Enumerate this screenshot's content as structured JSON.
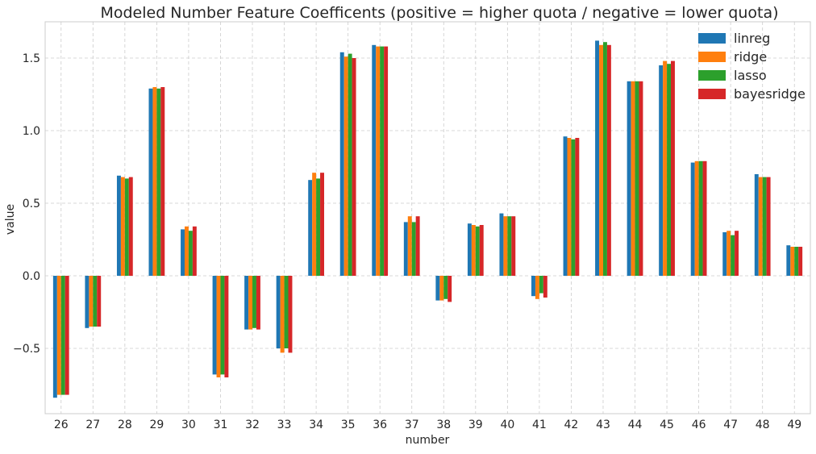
{
  "chart_data": {
    "type": "bar",
    "title": "Modeled Number Feature Coefficents (positive = higher quota / negative = lower quota)",
    "xlabel": "number",
    "ylabel": "value",
    "ylim": [
      -0.95,
      1.75
    ],
    "yticks": [
      -0.5,
      0.0,
      0.5,
      1.0,
      1.5
    ],
    "ytick_labels": [
      "−0.5",
      "0.0",
      "0.5",
      "1.0",
      "1.5"
    ],
    "grid": true,
    "legend_position": "top-right",
    "categories": [
      "26",
      "27",
      "28",
      "29",
      "30",
      "31",
      "32",
      "33",
      "34",
      "35",
      "36",
      "37",
      "38",
      "39",
      "40",
      "41",
      "42",
      "43",
      "44",
      "45",
      "46",
      "47",
      "48",
      "49"
    ],
    "series": [
      {
        "name": "linreg",
        "color": "#1f77b4",
        "values": [
          -0.84,
          -0.36,
          0.69,
          1.29,
          0.32,
          -0.68,
          -0.37,
          -0.5,
          0.66,
          1.54,
          1.59,
          0.37,
          -0.17,
          0.36,
          0.43,
          -0.14,
          0.96,
          1.62,
          1.34,
          1.45,
          0.78,
          0.3,
          0.7,
          0.21
        ]
      },
      {
        "name": "ridge",
        "color": "#ff7f0e",
        "values": [
          -0.82,
          -0.35,
          0.68,
          1.3,
          0.34,
          -0.7,
          -0.37,
          -0.53,
          0.71,
          1.51,
          1.58,
          0.41,
          -0.17,
          0.35,
          0.41,
          -0.16,
          0.95,
          1.59,
          1.34,
          1.48,
          0.79,
          0.31,
          0.68,
          0.2
        ]
      },
      {
        "name": "lasso",
        "color": "#2ca02c",
        "values": [
          -0.82,
          -0.35,
          0.67,
          1.29,
          0.31,
          -0.68,
          -0.36,
          -0.5,
          0.67,
          1.53,
          1.58,
          0.37,
          -0.16,
          0.34,
          0.41,
          -0.12,
          0.94,
          1.61,
          1.34,
          1.46,
          0.79,
          0.28,
          0.68,
          0.2
        ]
      },
      {
        "name": "bayesridge",
        "color": "#d62728",
        "values": [
          -0.82,
          -0.35,
          0.68,
          1.3,
          0.34,
          -0.7,
          -0.37,
          -0.53,
          0.71,
          1.5,
          1.58,
          0.41,
          -0.18,
          0.35,
          0.41,
          -0.15,
          0.95,
          1.59,
          1.34,
          1.48,
          0.79,
          0.31,
          0.68,
          0.2
        ]
      }
    ]
  }
}
